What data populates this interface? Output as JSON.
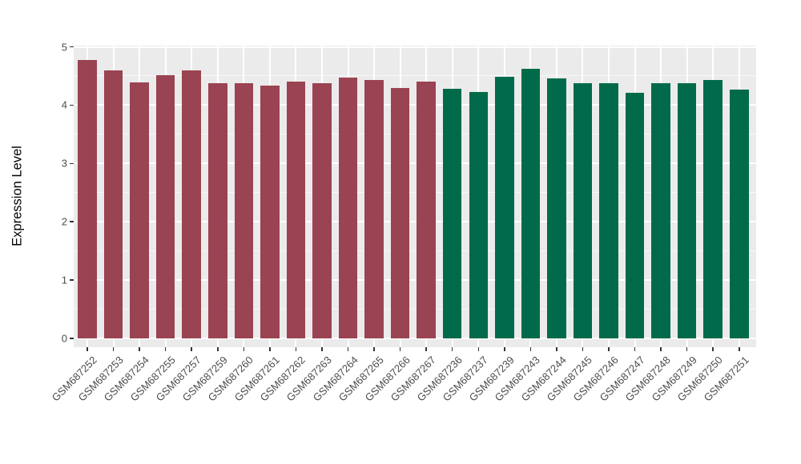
{
  "chart_data": {
    "type": "bar",
    "title": "",
    "xlabel": "",
    "ylabel": "Expression Level",
    "ylim": [
      0,
      5
    ],
    "yticks": [
      "0",
      "1",
      "2",
      "3",
      "4",
      "5"
    ],
    "minor_gridlines": [
      0.5,
      1.5,
      2.5,
      3.5,
      4.5
    ],
    "grid": "on",
    "legend_position": "none",
    "colors": {
      "panel_background": "#EBEBEB",
      "gridline": "#FFFFFF",
      "axis_text": "#4D4D4D",
      "axis_title": "#000000",
      "tick_mark": "#333333",
      "maroon_group": "#9A4352",
      "green_group": "#016A4B"
    },
    "bars": [
      {
        "label": "GSM687252",
        "value": 4.78,
        "color": "#9A4352"
      },
      {
        "label": "GSM687253",
        "value": 4.6,
        "color": "#9A4352"
      },
      {
        "label": "GSM687254",
        "value": 4.39,
        "color": "#9A4352"
      },
      {
        "label": "GSM687255",
        "value": 4.51,
        "color": "#9A4352"
      },
      {
        "label": "GSM687257",
        "value": 4.6,
        "color": "#9A4352"
      },
      {
        "label": "GSM687259",
        "value": 4.37,
        "color": "#9A4352"
      },
      {
        "label": "GSM687260",
        "value": 4.38,
        "color": "#9A4352"
      },
      {
        "label": "GSM687261",
        "value": 4.34,
        "color": "#9A4352"
      },
      {
        "label": "GSM687262",
        "value": 4.4,
        "color": "#9A4352"
      },
      {
        "label": "GSM687263",
        "value": 4.37,
        "color": "#9A4352"
      },
      {
        "label": "GSM687264",
        "value": 4.47,
        "color": "#9A4352"
      },
      {
        "label": "GSM687265",
        "value": 4.43,
        "color": "#9A4352"
      },
      {
        "label": "GSM687266",
        "value": 4.3,
        "color": "#9A4352"
      },
      {
        "label": "GSM687267",
        "value": 4.4,
        "color": "#9A4352"
      },
      {
        "label": "GSM687236",
        "value": 4.28,
        "color": "#016A4B"
      },
      {
        "label": "GSM687237",
        "value": 4.22,
        "color": "#016A4B"
      },
      {
        "label": "GSM687239",
        "value": 4.48,
        "color": "#016A4B"
      },
      {
        "label": "GSM687243",
        "value": 4.62,
        "color": "#016A4B"
      },
      {
        "label": "GSM687244",
        "value": 4.46,
        "color": "#016A4B"
      },
      {
        "label": "GSM687245",
        "value": 4.37,
        "color": "#016A4B"
      },
      {
        "label": "GSM687246",
        "value": 4.37,
        "color": "#016A4B"
      },
      {
        "label": "GSM687247",
        "value": 4.21,
        "color": "#016A4B"
      },
      {
        "label": "GSM687248",
        "value": 4.37,
        "color": "#016A4B"
      },
      {
        "label": "GSM687249",
        "value": 4.37,
        "color": "#016A4B"
      },
      {
        "label": "GSM687250",
        "value": 4.43,
        "color": "#016A4B"
      },
      {
        "label": "GSM687251",
        "value": 4.26,
        "color": "#016A4B"
      }
    ]
  }
}
